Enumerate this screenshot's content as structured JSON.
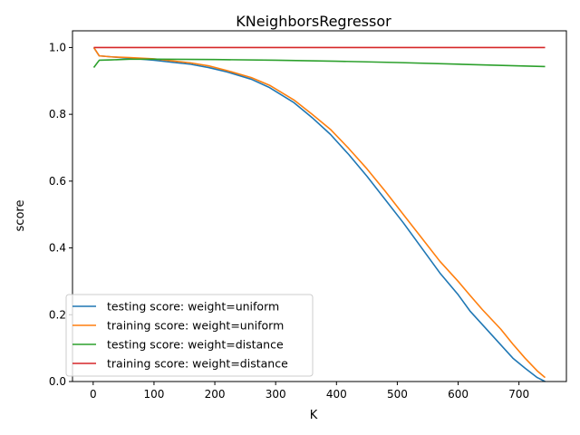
{
  "chart_data": {
    "type": "line",
    "title": "KNeighborsRegressor",
    "xlabel": "K",
    "ylabel": "score",
    "xlim": [
      -34,
      778
    ],
    "ylim": [
      0.0,
      1.05
    ],
    "xticks": [
      0,
      100,
      200,
      300,
      400,
      500,
      600,
      700
    ],
    "xtick_labels": [
      "0",
      "100",
      "200",
      "300",
      "400",
      "500",
      "600",
      "700"
    ],
    "yticks": [
      0.0,
      0.2,
      0.4,
      0.6,
      0.8,
      1.0
    ],
    "ytick_labels": [
      "0.0",
      "0.2",
      "0.4",
      "0.6",
      "0.8",
      "1.0"
    ],
    "grid": false,
    "legend_position": "lower-left",
    "series": [
      {
        "name": "testing score: weight=uniform",
        "color": "#1f77b4",
        "x": [
          1,
          10,
          30,
          60,
          100,
          130,
          160,
          190,
          220,
          260,
          290,
          330,
          360,
          390,
          420,
          450,
          480,
          510,
          540,
          570,
          600,
          620,
          640,
          670,
          690,
          710,
          730,
          743
        ],
        "y": [
          1.0,
          0.975,
          0.972,
          0.968,
          0.962,
          0.956,
          0.95,
          0.94,
          0.927,
          0.905,
          0.88,
          0.835,
          0.79,
          0.74,
          0.68,
          0.615,
          0.545,
          0.475,
          0.4,
          0.325,
          0.26,
          0.21,
          0.17,
          0.11,
          0.07,
          0.04,
          0.012,
          0.0
        ]
      },
      {
        "name": "training score: weight=uniform",
        "color": "#ff7f0e",
        "x": [
          1,
          10,
          30,
          60,
          100,
          130,
          160,
          190,
          220,
          260,
          290,
          330,
          360,
          390,
          420,
          450,
          480,
          510,
          540,
          570,
          600,
          620,
          640,
          670,
          690,
          710,
          730,
          743
        ],
        "y": [
          1.0,
          0.975,
          0.972,
          0.97,
          0.966,
          0.96,
          0.954,
          0.945,
          0.931,
          0.91,
          0.887,
          0.843,
          0.8,
          0.755,
          0.698,
          0.637,
          0.57,
          0.5,
          0.43,
          0.36,
          0.3,
          0.257,
          0.215,
          0.157,
          0.112,
          0.07,
          0.032,
          0.012
        ]
      },
      {
        "name": "testing score: weight=distance",
        "color": "#2ca02c",
        "x": [
          1,
          10,
          30,
          60,
          100,
          200,
          300,
          400,
          500,
          600,
          700,
          743
        ],
        "y": [
          0.94,
          0.962,
          0.963,
          0.965,
          0.965,
          0.964,
          0.962,
          0.959,
          0.955,
          0.95,
          0.945,
          0.943
        ]
      },
      {
        "name": "training score: weight=distance",
        "color": "#d62728",
        "x": [
          1,
          743
        ],
        "y": [
          1.0,
          1.0
        ]
      }
    ]
  }
}
